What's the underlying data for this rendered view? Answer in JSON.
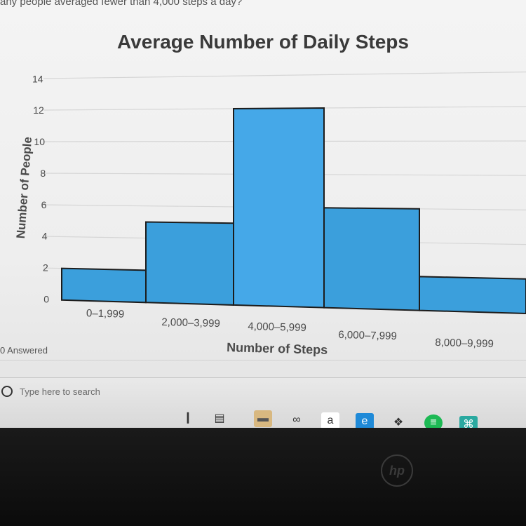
{
  "header": {
    "cut_text": "any people averaged fewer than 4,000 steps a day?"
  },
  "chart_data": {
    "type": "bar",
    "title": "Average Number of Daily Steps",
    "xlabel": "Number of Steps",
    "ylabel": "Number of People",
    "categories": [
      "0–1,999",
      "2,000–3,999",
      "4,000–5,999",
      "6,000–7,999",
      "8,000–9,999"
    ],
    "values": [
      2,
      5,
      12,
      6,
      2
    ],
    "ylim": [
      0,
      14
    ],
    "yticks": [
      "0",
      "2",
      "4",
      "6",
      "8",
      "10",
      "12",
      "14"
    ],
    "grid": true,
    "bar_color": "#3b9fdc",
    "bar_color_highlight": "#45a8e8",
    "edge_color": "#1c1c1c"
  },
  "status": {
    "answered": "0 Answered"
  },
  "taskbar": {
    "search_placeholder": "Type here to search",
    "icons": [
      {
        "name": "microphone-icon",
        "glyph": "❙"
      },
      {
        "name": "task-view-icon",
        "glyph": "▤"
      },
      {
        "name": "file-explorer-icon",
        "glyph": "▬"
      },
      {
        "name": "infinity-icon",
        "glyph": "∞"
      },
      {
        "name": "amazon-icon",
        "glyph": "a"
      },
      {
        "name": "edge-icon",
        "glyph": "e"
      },
      {
        "name": "dropbox-icon",
        "glyph": "❖"
      },
      {
        "name": "spotify-icon",
        "glyph": "≡"
      },
      {
        "name": "app-icon",
        "glyph": "⌘"
      }
    ]
  },
  "brand": {
    "logo": "hp"
  }
}
